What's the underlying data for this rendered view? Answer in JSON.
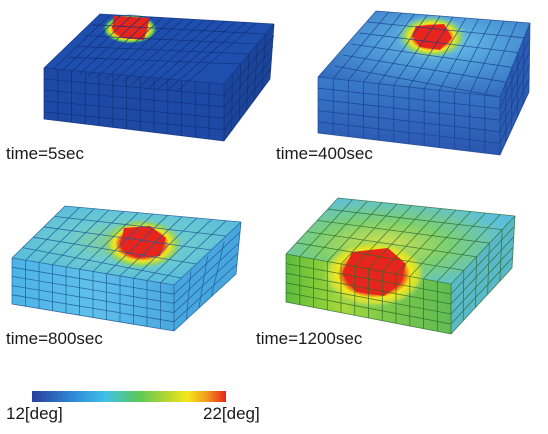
{
  "panels": [
    {
      "caption": "time=5sec",
      "hotspot_level": "small, red core at top edge",
      "face_color": "#1f4fae"
    },
    {
      "caption": "time=400sec",
      "hotspot_level": "red core, light-blue halo",
      "face_color": "#3f86cc"
    },
    {
      "caption": "time=800sec",
      "hotspot_level": "red core, green-yellow halo",
      "face_color": "#52b4e6"
    },
    {
      "caption": "time=1200sec",
      "hotspot_level": "red core spreading into front face, yellow-green body",
      "face_color": "#5fbb4a"
    }
  ],
  "colorbar": {
    "min_label": "12[deg]",
    "max_label": "22[deg]",
    "colors": [
      "#2a3f9e",
      "#2e86d4",
      "#3fc0e8",
      "#5cc85a",
      "#b8d630",
      "#f4e81c",
      "#f29a1e",
      "#e8251c"
    ]
  }
}
